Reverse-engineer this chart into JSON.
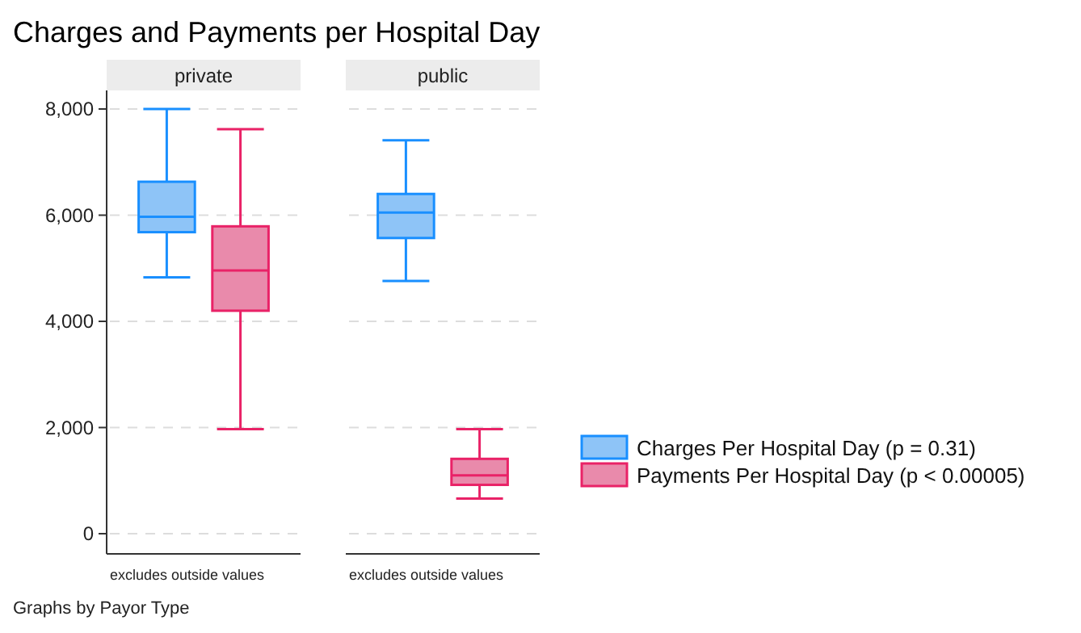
{
  "chart_data": {
    "type": "box",
    "title": "Charges and Payments per Hospital Day",
    "categories": [
      "private",
      "public"
    ],
    "ylim": [
      -380,
      8350
    ],
    "yticks": [
      {
        "value": 0,
        "label": "0"
      },
      {
        "value": 2000,
        "label": "2,000"
      },
      {
        "value": 4000,
        "label": "4,000"
      },
      {
        "value": 6000,
        "label": "6,000"
      },
      {
        "value": 8000,
        "label": "8,000"
      }
    ],
    "grid": "y",
    "legend": "right",
    "series": [
      {
        "name": "Charges Per Hospital Day (p = 0.31)",
        "color": "#8ec4f7",
        "boxes": [
          {
            "low": 4830,
            "q1": 5680,
            "median": 5970,
            "q3": 6630,
            "high": 8000
          },
          {
            "low": 4760,
            "q1": 5570,
            "median": 6050,
            "q3": 6400,
            "high": 7410
          }
        ]
      },
      {
        "name": "Payments Per Hospital Day (p < 0.00005)",
        "color": "#e98aab",
        "boxes": [
          {
            "low": 1970,
            "q1": 4200,
            "median": 4960,
            "q3": 5790,
            "high": 7620
          },
          {
            "low": 660,
            "q1": 920,
            "median": 1100,
            "q3": 1410,
            "high": 1970
          }
        ]
      }
    ],
    "annotations": [
      "excludes outside values",
      "excludes outside values",
      "Graphs by Payor Type"
    ]
  }
}
